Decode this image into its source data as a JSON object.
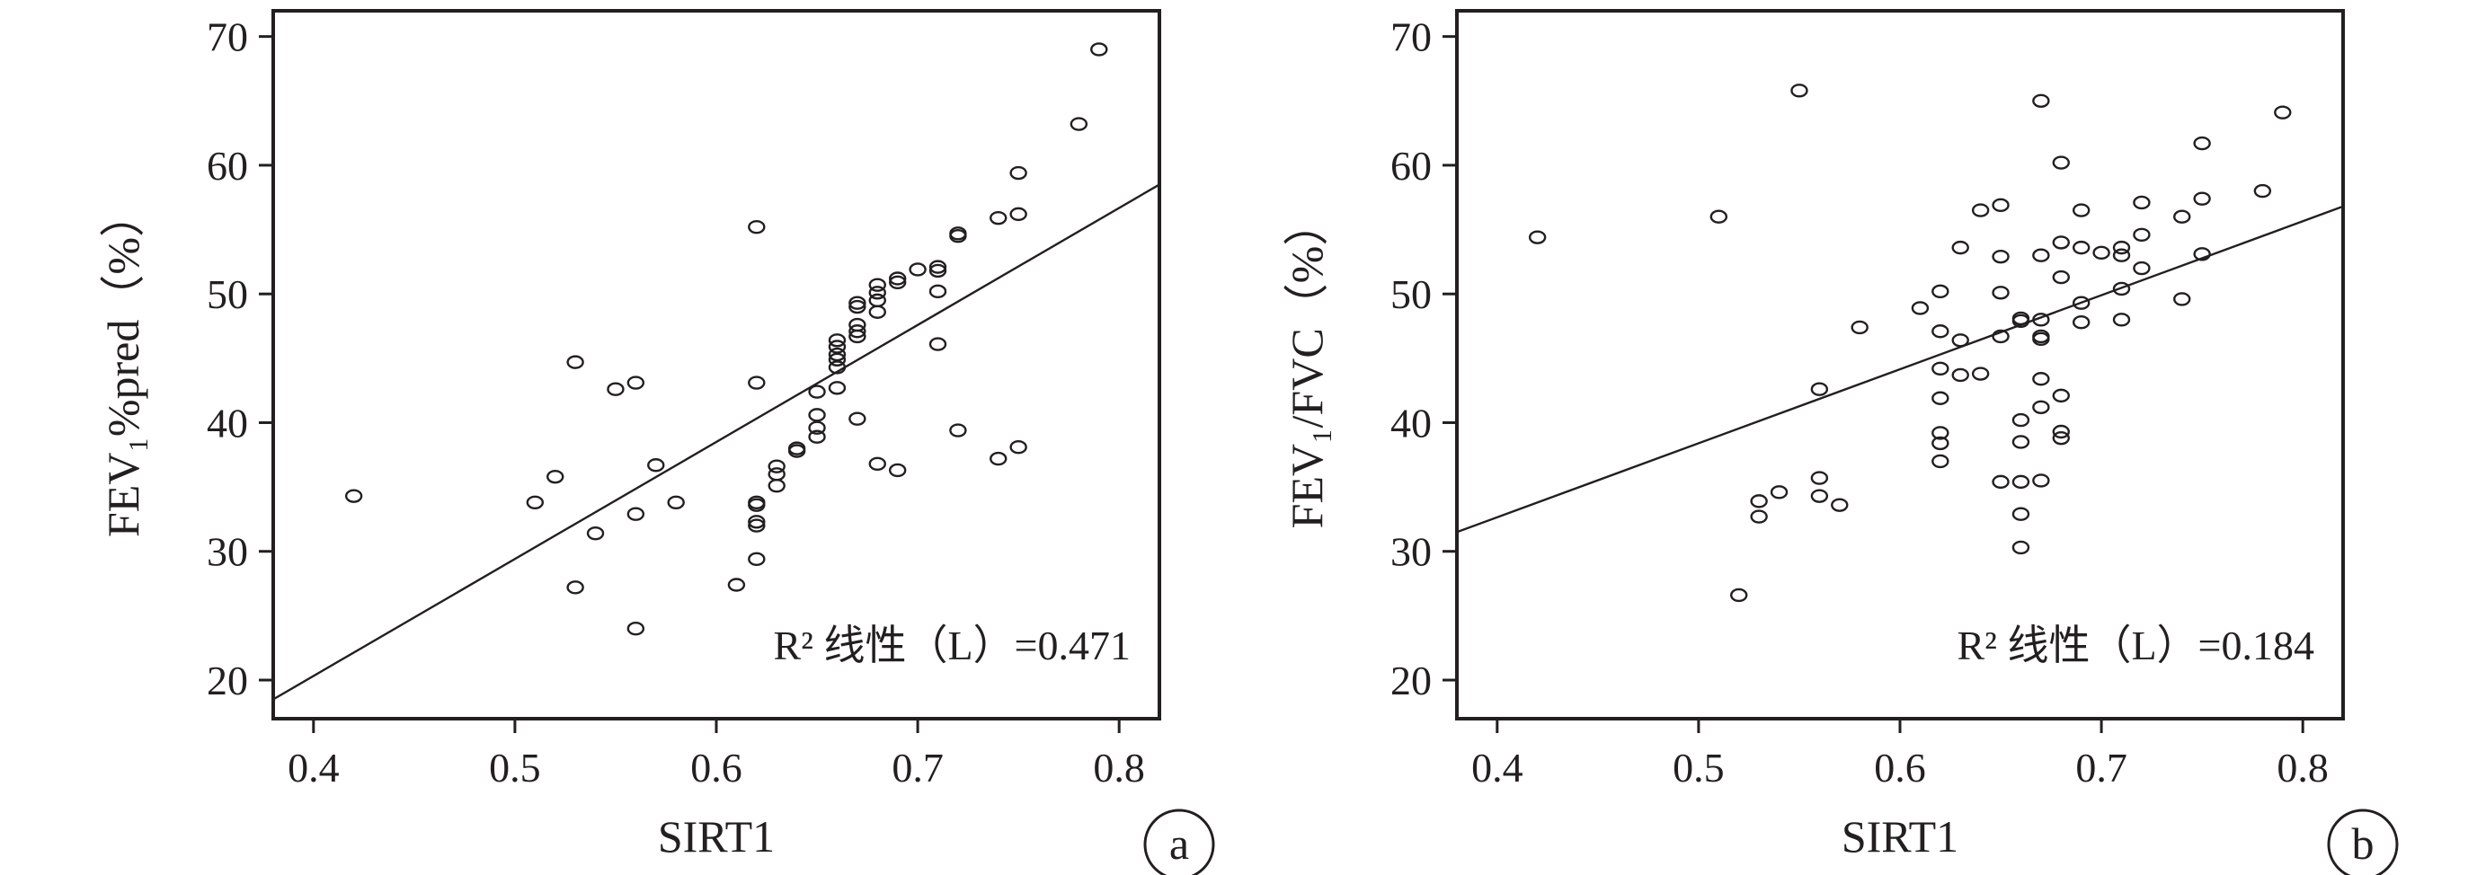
{
  "chart_data": [
    {
      "type": "scatter",
      "panel_label": "a",
      "xlabel": "SIRT1",
      "ylabel": "FEV₁%pred（%）",
      "xlim": [
        0.38,
        0.82
      ],
      "ylim": [
        17,
        72
      ],
      "xticks": [
        0.4,
        0.5,
        0.6,
        0.7,
        0.8
      ],
      "xtick_labels": [
        "0.4",
        "0.5",
        "0.6",
        "0.7",
        "0.8"
      ],
      "yticks": [
        20,
        30,
        40,
        50,
        60,
        70
      ],
      "ytick_labels": [
        "20",
        "30",
        "40",
        "50",
        "60",
        "70"
      ],
      "annotation": "R² 线性（L）=0.471",
      "fit_line": [
        [
          0.38,
          18.5
        ],
        [
          0.82,
          58.5
        ]
      ],
      "points": [
        [
          0.42,
          34.3
        ],
        [
          0.51,
          33.8
        ],
        [
          0.52,
          35.8
        ],
        [
          0.53,
          44.7
        ],
        [
          0.53,
          27.2
        ],
        [
          0.54,
          31.4
        ],
        [
          0.55,
          42.6
        ],
        [
          0.56,
          43.1
        ],
        [
          0.56,
          32.9
        ],
        [
          0.56,
          24.0
        ],
        [
          0.57,
          36.7
        ],
        [
          0.58,
          33.8
        ],
        [
          0.61,
          27.4
        ],
        [
          0.62,
          55.2
        ],
        [
          0.62,
          43.1
        ],
        [
          0.62,
          33.8
        ],
        [
          0.62,
          33.6
        ],
        [
          0.62,
          32.3
        ],
        [
          0.62,
          32.0
        ],
        [
          0.62,
          29.4
        ],
        [
          0.63,
          36.6
        ],
        [
          0.63,
          36.0
        ],
        [
          0.63,
          35.1
        ],
        [
          0.64,
          38.0
        ],
        [
          0.64,
          37.8
        ],
        [
          0.65,
          42.4
        ],
        [
          0.65,
          40.6
        ],
        [
          0.65,
          39.6
        ],
        [
          0.65,
          38.9
        ],
        [
          0.66,
          46.4
        ],
        [
          0.66,
          45.9
        ],
        [
          0.66,
          45.3
        ],
        [
          0.66,
          44.9
        ],
        [
          0.66,
          44.3
        ],
        [
          0.66,
          42.7
        ],
        [
          0.67,
          49.3
        ],
        [
          0.67,
          49.0
        ],
        [
          0.67,
          47.6
        ],
        [
          0.67,
          47.1
        ],
        [
          0.67,
          46.7
        ],
        [
          0.67,
          40.3
        ],
        [
          0.68,
          50.7
        ],
        [
          0.68,
          50.1
        ],
        [
          0.68,
          49.5
        ],
        [
          0.68,
          48.6
        ],
        [
          0.68,
          36.8
        ],
        [
          0.69,
          51.2
        ],
        [
          0.69,
          50.9
        ],
        [
          0.69,
          36.3
        ],
        [
          0.7,
          51.9
        ],
        [
          0.71,
          52.1
        ],
        [
          0.71,
          51.8
        ],
        [
          0.71,
          50.2
        ],
        [
          0.71,
          46.1
        ],
        [
          0.72,
          54.7
        ],
        [
          0.72,
          54.5
        ],
        [
          0.72,
          39.4
        ],
        [
          0.74,
          55.9
        ],
        [
          0.74,
          37.2
        ],
        [
          0.75,
          59.4
        ],
        [
          0.75,
          56.2
        ],
        [
          0.75,
          38.1
        ],
        [
          0.78,
          63.2
        ],
        [
          0.79,
          69.0
        ]
      ]
    },
    {
      "type": "scatter",
      "panel_label": "b",
      "xlabel": "SIRT1",
      "ylabel": "FEV₁/FVC（%）",
      "xlim": [
        0.38,
        0.82
      ],
      "ylim": [
        17,
        72
      ],
      "xticks": [
        0.4,
        0.5,
        0.6,
        0.7,
        0.8
      ],
      "xtick_labels": [
        "0.4",
        "0.5",
        "0.6",
        "0.7",
        "0.8"
      ],
      "yticks": [
        20,
        30,
        40,
        50,
        60,
        70
      ],
      "ytick_labels": [
        "20",
        "30",
        "40",
        "50",
        "60",
        "70"
      ],
      "annotation": "R² 线性（L）=0.184",
      "fit_line": [
        [
          0.38,
          31.5
        ],
        [
          0.82,
          56.8
        ]
      ],
      "points": [
        [
          0.42,
          54.4
        ],
        [
          0.51,
          56.0
        ],
        [
          0.52,
          26.6
        ],
        [
          0.53,
          33.9
        ],
        [
          0.53,
          32.7
        ],
        [
          0.54,
          34.6
        ],
        [
          0.55,
          65.8
        ],
        [
          0.56,
          42.6
        ],
        [
          0.56,
          35.7
        ],
        [
          0.56,
          34.3
        ],
        [
          0.57,
          33.6
        ],
        [
          0.58,
          47.4
        ],
        [
          0.61,
          48.9
        ],
        [
          0.62,
          50.2
        ],
        [
          0.62,
          47.1
        ],
        [
          0.62,
          44.2
        ],
        [
          0.62,
          41.9
        ],
        [
          0.62,
          39.2
        ],
        [
          0.62,
          38.4
        ],
        [
          0.62,
          37.0
        ],
        [
          0.63,
          53.6
        ],
        [
          0.63,
          46.4
        ],
        [
          0.63,
          43.7
        ],
        [
          0.64,
          56.5
        ],
        [
          0.64,
          43.8
        ],
        [
          0.65,
          56.9
        ],
        [
          0.65,
          52.9
        ],
        [
          0.65,
          50.1
        ],
        [
          0.65,
          46.7
        ],
        [
          0.65,
          35.4
        ],
        [
          0.66,
          48.1
        ],
        [
          0.66,
          47.9
        ],
        [
          0.66,
          40.2
        ],
        [
          0.66,
          38.5
        ],
        [
          0.66,
          35.4
        ],
        [
          0.66,
          32.9
        ],
        [
          0.66,
          30.3
        ],
        [
          0.67,
          65.0
        ],
        [
          0.67,
          53.0
        ],
        [
          0.67,
          48.0
        ],
        [
          0.67,
          46.7
        ],
        [
          0.67,
          46.5
        ],
        [
          0.67,
          43.4
        ],
        [
          0.67,
          41.2
        ],
        [
          0.67,
          35.5
        ],
        [
          0.68,
          60.2
        ],
        [
          0.68,
          54.0
        ],
        [
          0.68,
          51.3
        ],
        [
          0.68,
          42.1
        ],
        [
          0.68,
          39.3
        ],
        [
          0.68,
          38.8
        ],
        [
          0.69,
          56.5
        ],
        [
          0.69,
          53.6
        ],
        [
          0.69,
          49.3
        ],
        [
          0.69,
          47.8
        ],
        [
          0.7,
          53.2
        ],
        [
          0.71,
          53.6
        ],
        [
          0.71,
          53.0
        ],
        [
          0.71,
          50.4
        ],
        [
          0.71,
          48.0
        ],
        [
          0.72,
          57.1
        ],
        [
          0.72,
          54.6
        ],
        [
          0.72,
          52.0
        ],
        [
          0.74,
          56.0
        ],
        [
          0.74,
          49.6
        ],
        [
          0.75,
          61.7
        ],
        [
          0.75,
          57.4
        ],
        [
          0.75,
          53.1
        ],
        [
          0.78,
          58.0
        ],
        [
          0.79,
          64.1
        ]
      ]
    }
  ]
}
